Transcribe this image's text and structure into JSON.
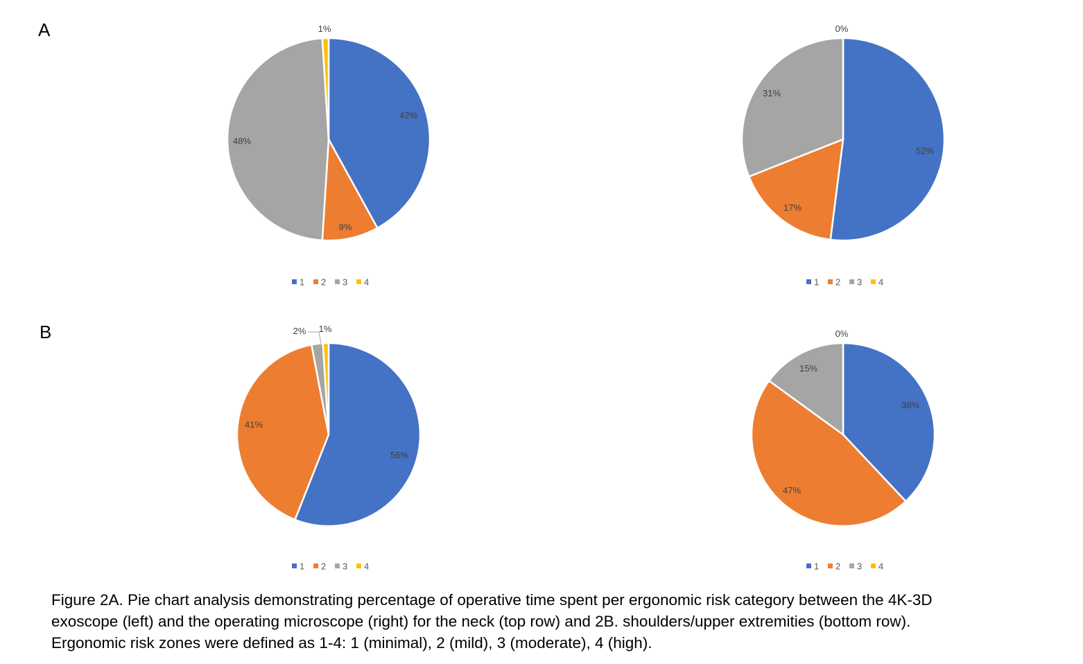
{
  "panels": {
    "A": "A",
    "B": "B"
  },
  "caption": [
    "Figure 2A. Pie chart analysis demonstrating percentage of operative time spent per ergonomic risk category between the 4K-3D",
    "exoscope (left) and the operating microscope (right) for the neck (top row) and 2B. shoulders/upper extremities (bottom row).",
    "Ergonomic risk zones were defined as 1-4: 1 (minimal), 2 (mild), 3 (moderate), 4 (high)."
  ],
  "colors": {
    "1": "#4472C4",
    "2": "#ED7D31",
    "3": "#A5A5A5",
    "4": "#FFC000"
  },
  "chart_data": [
    {
      "type": "pie",
      "panel": "A",
      "position": "left",
      "subject": "4K-3D exoscope, neck",
      "categories": [
        "1",
        "2",
        "3",
        "4"
      ],
      "values": [
        42,
        9,
        48,
        1
      ],
      "labels": [
        "42%",
        "9%",
        "48%",
        "1%"
      ],
      "legend": [
        "1",
        "2",
        "3",
        "4"
      ]
    },
    {
      "type": "pie",
      "panel": "A",
      "position": "right",
      "subject": "operating microscope, neck",
      "categories": [
        "1",
        "2",
        "3",
        "4"
      ],
      "values": [
        52,
        17,
        31,
        0
      ],
      "labels": [
        "52%",
        "17%",
        "31%",
        "0%"
      ],
      "legend": [
        "1",
        "2",
        "3",
        "4"
      ]
    },
    {
      "type": "pie",
      "panel": "B",
      "position": "left",
      "subject": "4K-3D exoscope, shoulders/upper extremities",
      "categories": [
        "1",
        "2",
        "3",
        "4"
      ],
      "values": [
        56,
        41,
        2,
        1
      ],
      "labels": [
        "56%",
        "41%",
        "2%",
        "1%"
      ],
      "legend": [
        "1",
        "2",
        "3",
        "4"
      ]
    },
    {
      "type": "pie",
      "panel": "B",
      "position": "right",
      "subject": "operating microscope, shoulders/upper extremities",
      "categories": [
        "1",
        "2",
        "3",
        "4"
      ],
      "values": [
        38,
        47,
        15,
        0
      ],
      "labels": [
        "38%",
        "47%",
        "15%",
        "0%"
      ],
      "legend": [
        "1",
        "2",
        "3",
        "4"
      ]
    }
  ]
}
